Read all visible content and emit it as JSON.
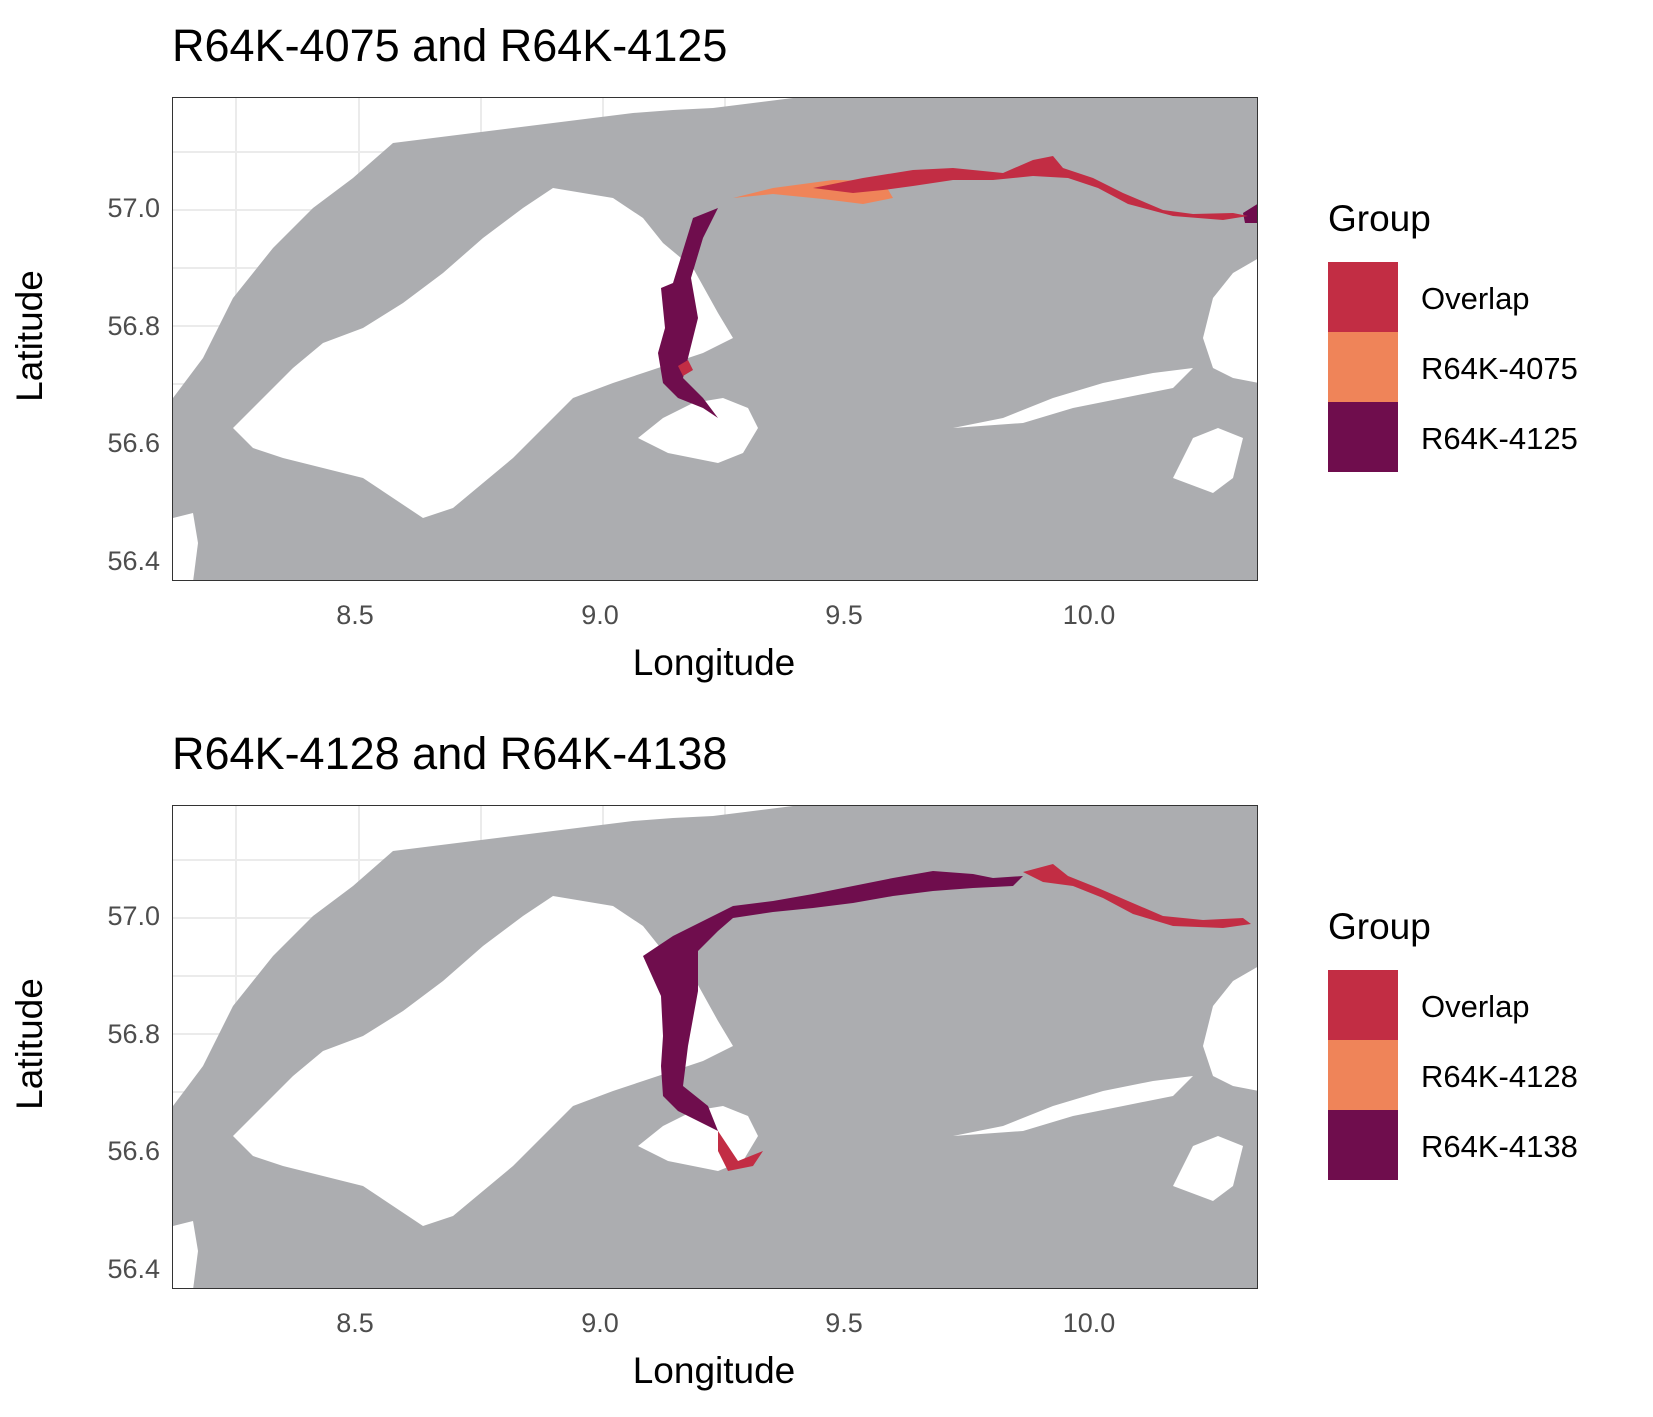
{
  "colors": {
    "land": "#acadb0",
    "water": "#ffffff",
    "grid": "#ebebeb",
    "overlap": "#c22d44",
    "first": "#ef8459",
    "second": "#6f0d4d"
  },
  "panels": [
    {
      "title": "R64K-4075 and R64K-4125",
      "xlabel": "Longitude",
      "ylabel": "Latitude",
      "xticks": [
        "8.5",
        "9.0",
        "9.5",
        "10.0"
      ],
      "yticks": [
        "57.0",
        "56.8",
        "56.6",
        "56.4"
      ],
      "legend": {
        "title": "Group",
        "items": [
          {
            "label": "Overlap",
            "color": "#c22d44"
          },
          {
            "label": "R64K-4075",
            "color": "#ef8459"
          },
          {
            "label": "R64K-4125",
            "color": "#6f0d4d"
          }
        ]
      }
    },
    {
      "title": "R64K-4128 and R64K-4138",
      "xlabel": "Longitude",
      "ylabel": "Latitude",
      "xticks": [
        "8.5",
        "9.0",
        "9.5",
        "10.0"
      ],
      "yticks": [
        "57.0",
        "56.8",
        "56.6",
        "56.4"
      ],
      "legend": {
        "title": "Group",
        "items": [
          {
            "label": "Overlap",
            "color": "#c22d44"
          },
          {
            "label": "R64K-4128",
            "color": "#ef8459"
          },
          {
            "label": "R64K-4138",
            "color": "#6f0d4d"
          }
        ]
      }
    }
  ]
}
